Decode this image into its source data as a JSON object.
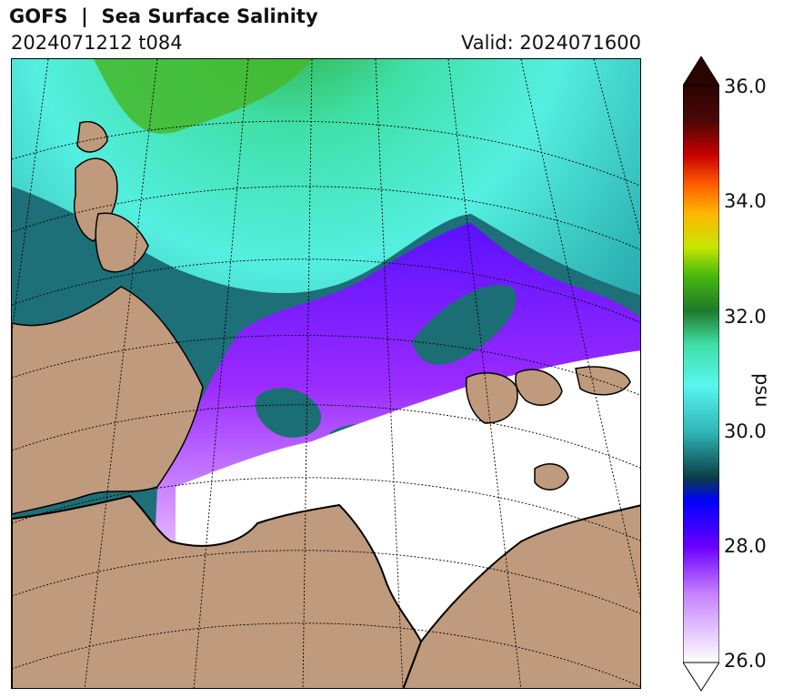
{
  "header": {
    "title": "GOFS  |  Sea Surface Salinity",
    "run": "2024071212 t084",
    "valid": "Valid: 2024071600"
  },
  "colorbar": {
    "label": "psu",
    "ticks": [
      "36.0",
      "34.0",
      "32.0",
      "30.0",
      "28.0",
      "26.0"
    ],
    "range": [
      26.0,
      36.0
    ],
    "extend": "both"
  },
  "colors": {
    "land": "#c09a7c",
    "fresh": "#ffffff",
    "low": "#8a1aff",
    "mid": "#2eb8b0",
    "high": "#5af5e0",
    "green": "#2fa846"
  }
}
